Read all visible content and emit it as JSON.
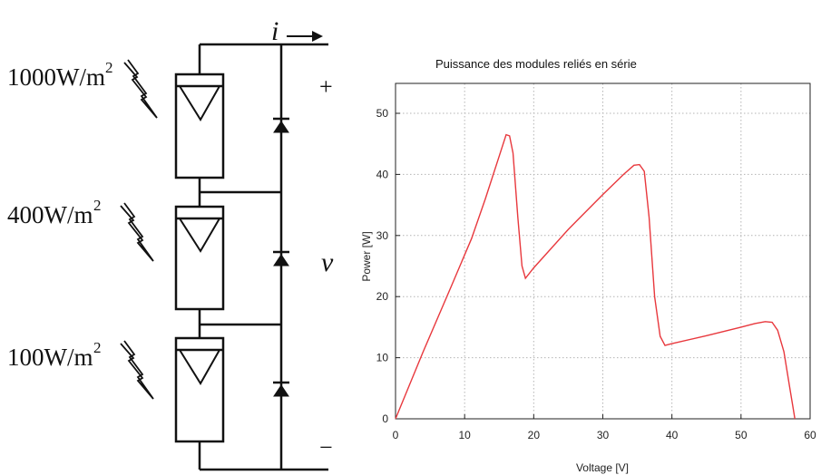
{
  "circuit": {
    "irradiances": [
      {
        "value": "1000W/m",
        "exp": "2"
      },
      {
        "value": "400W/m",
        "exp": "2"
      },
      {
        "value": "100W/m",
        "exp": "2"
      }
    ],
    "current_label": "i",
    "voltage_label": "v",
    "plus_label": "+",
    "minus_label": "−"
  },
  "chart_data": {
    "type": "line",
    "title": "Puissance des modules reliés en série",
    "xlabel": "Voltage [V]",
    "ylabel": "Power [W]",
    "xlim": [
      0,
      60
    ],
    "ylim": [
      0,
      55
    ],
    "xticks": [
      0,
      10,
      20,
      30,
      40,
      50,
      60
    ],
    "yticks": [
      0,
      10,
      20,
      30,
      40,
      50
    ],
    "grid": true,
    "series": [
      {
        "color": "#e8383d",
        "points": [
          [
            0,
            0
          ],
          [
            4,
            11
          ],
          [
            8,
            21.5
          ],
          [
            11,
            29.5
          ],
          [
            13,
            36
          ],
          [
            15,
            43
          ],
          [
            16,
            46.5
          ],
          [
            16.5,
            46.3
          ],
          [
            17,
            43.5
          ],
          [
            17.7,
            33
          ],
          [
            18.3,
            25
          ],
          [
            18.8,
            23
          ],
          [
            20,
            24.7
          ],
          [
            25,
            31
          ],
          [
            30,
            36.7
          ],
          [
            33,
            40
          ],
          [
            34.5,
            41.5
          ],
          [
            35.3,
            41.6
          ],
          [
            36,
            40.5
          ],
          [
            36.7,
            33
          ],
          [
            37.5,
            20
          ],
          [
            38.3,
            13.5
          ],
          [
            39,
            12
          ],
          [
            40,
            12.3
          ],
          [
            45,
            13.6
          ],
          [
            50,
            15
          ],
          [
            52,
            15.6
          ],
          [
            53.5,
            15.9
          ],
          [
            54.5,
            15.8
          ],
          [
            55.3,
            14.5
          ],
          [
            56.2,
            11
          ],
          [
            57,
            5.5
          ],
          [
            57.5,
            2
          ],
          [
            57.8,
            0
          ]
        ]
      }
    ]
  },
  "colors": {
    "curve": "#e8383d",
    "grid": "#b4b4b4",
    "ink": "#111111"
  }
}
